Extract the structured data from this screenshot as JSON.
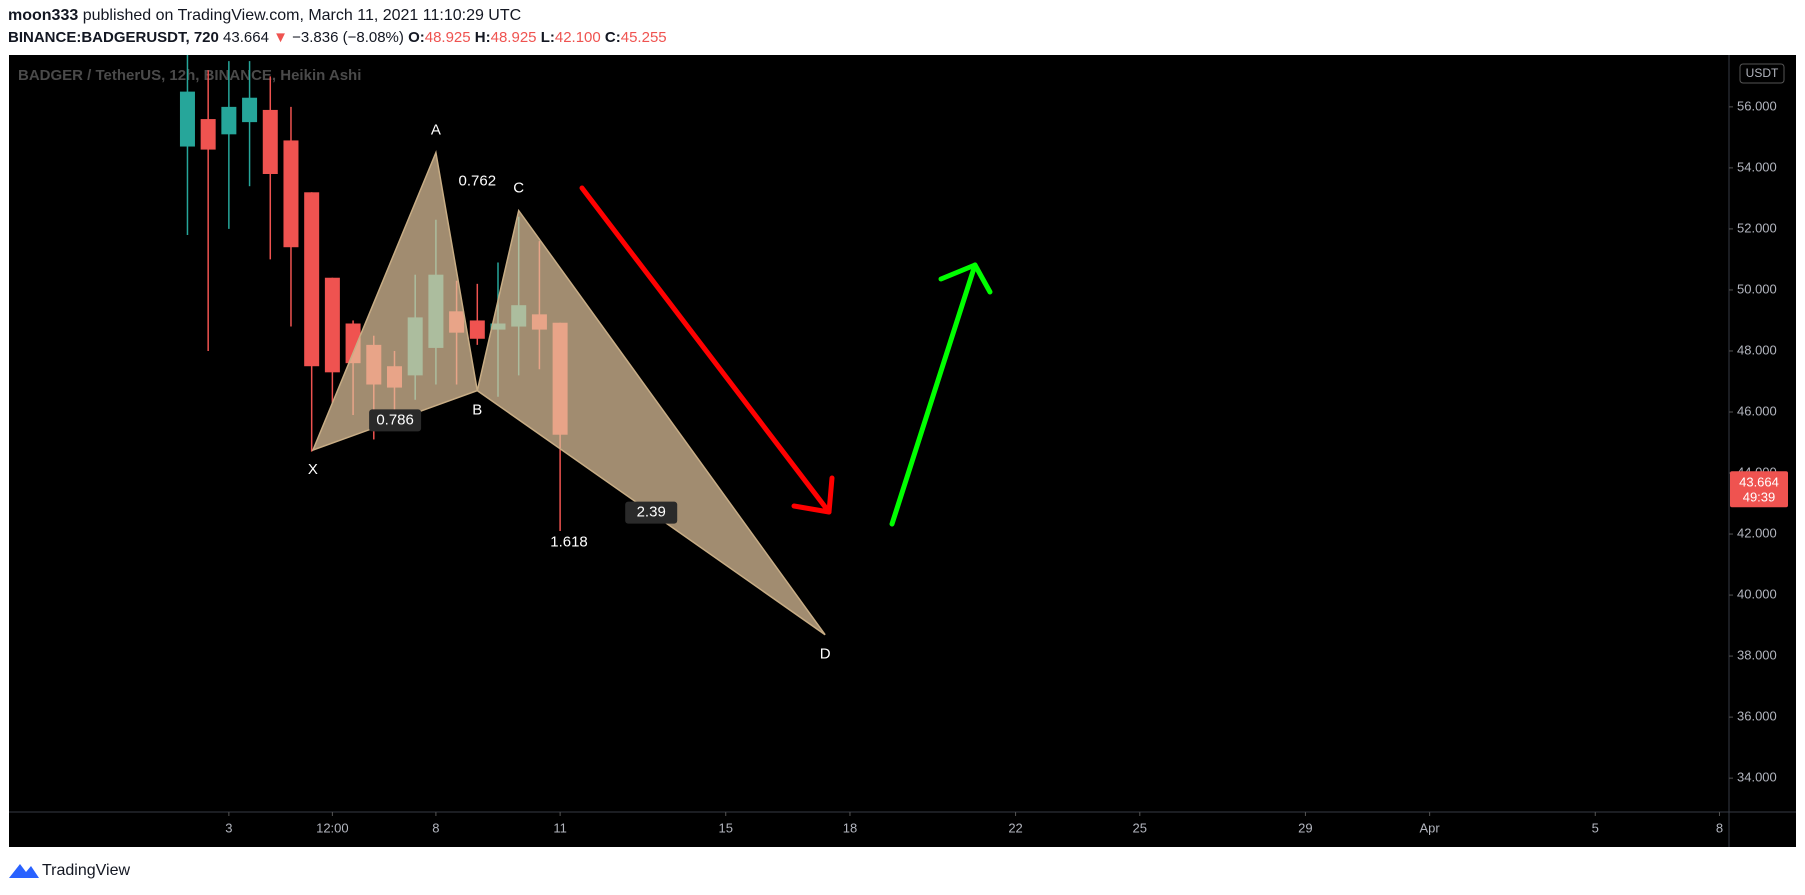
{
  "header": {
    "author": "moon333",
    "published": "published on TradingView.com, March 11, 2021 11:10:29 UTC",
    "symbol": "BINANCE:BADGERUSDT, 720",
    "price": "43.664",
    "change_arrow": "▼",
    "change": "−3.836 (−8.08%)",
    "ohlc": [
      {
        "label": "O:",
        "value": "48.925"
      },
      {
        "label": "H:",
        "value": "48.925"
      },
      {
        "label": "L:",
        "value": "42.100"
      },
      {
        "label": "C:",
        "value": "45.255"
      }
    ]
  },
  "chart_data": {
    "type": "candlestick",
    "title": "BADGER / TetherUS, 12h, BINANCE, Heikin Ashi",
    "currency": "USDT",
    "x": [
      2,
      2.5,
      3,
      3.5,
      4,
      4.5,
      5,
      5.5,
      6,
      6.5,
      7,
      7.5,
      8,
      8.5,
      9,
      9.5,
      10,
      10.5,
      11
    ],
    "open": [
      54.7,
      55.6,
      55.1,
      55.5,
      55.9,
      54.9,
      53.2,
      50.4,
      48.9,
      48.2,
      47.5,
      47.2,
      48.1,
      49.3,
      49.0,
      48.7,
      48.8,
      49.2,
      48.925
    ],
    "high": [
      57.7,
      57.2,
      57.5,
      57.5,
      57.0,
      56.0,
      53.2,
      50.4,
      49.0,
      48.5,
      48.0,
      50.5,
      52.3,
      50.3,
      50.2,
      50.9,
      52.4,
      51.6,
      48.925
    ],
    "low": [
      51.8,
      48.0,
      52.0,
      53.4,
      51.0,
      48.8,
      44.7,
      46.3,
      45.9,
      45.1,
      46.0,
      46.4,
      46.9,
      46.9,
      48.2,
      46.5,
      47.2,
      47.4,
      42.1
    ],
    "close": [
      56.5,
      54.6,
      56.0,
      56.3,
      53.8,
      51.4,
      47.5,
      47.3,
      47.6,
      46.9,
      46.8,
      49.1,
      50.5,
      48.6,
      48.4,
      48.9,
      49.5,
      48.7,
      45.255
    ],
    "up_color": "#26a69a",
    "down_color": "#ef5350",
    "xlim": [
      -2.31,
      39.23
    ],
    "xticks": [
      3,
      {
        "value": 5.5,
        "label": "12:00"
      },
      8,
      11,
      15,
      18,
      22,
      25,
      29,
      {
        "value": 32,
        "label": "Apr"
      },
      {
        "value": 36,
        "label": "5"
      },
      {
        "value": 39,
        "label": "8"
      }
    ],
    "ylim": [
      32.89,
      57.7
    ],
    "yticks": [
      {
        "value": 34,
        "label": "34.000"
      },
      {
        "value": 36,
        "label": "36.000"
      },
      {
        "value": 38,
        "label": "38.000"
      },
      {
        "value": 40,
        "label": "40.000"
      },
      {
        "value": 42,
        "label": "42.000"
      },
      {
        "value": 44,
        "label": "44.000"
      },
      {
        "value": 46,
        "label": "46.000"
      },
      {
        "value": 48,
        "label": "48.000"
      },
      {
        "value": 50,
        "label": "50.000"
      },
      {
        "value": 52,
        "label": "52.000"
      },
      {
        "value": 54,
        "label": "54.000"
      },
      {
        "value": 56,
        "label": "56.000"
      }
    ],
    "grid": false,
    "last_price": 43.664,
    "countdown": "49:39",
    "pattern": {
      "labels": [
        "X",
        "A",
        "B",
        "C",
        "D"
      ],
      "x": [
        5.03,
        8,
        9,
        10,
        17.4
      ],
      "y": [
        44.75,
        54.5,
        46.7,
        52.6,
        38.7
      ]
    },
    "ratios": [
      0.786,
      0.762,
      2.39,
      1.618
    ]
  },
  "footer": {
    "brand": "TradingView"
  }
}
